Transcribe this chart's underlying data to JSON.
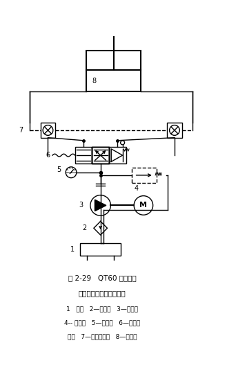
{
  "title_line1": "图 2-29   QT60 型塔式起",
  "title_line2": "重机升降液压系统原理图",
  "legend_line1": "1   油箱   2—过滤器   3—齿轮泵",
  "legend_line2": "4-- 溢流阀   5—压力表   6—手动换",
  "legend_line3": "向阀   7—双向液压锁   8—液压缸",
  "bg_color": "#ffffff",
  "line_color": "#000000",
  "fig_width": 3.29,
  "fig_height": 5.6,
  "dpi": 100
}
